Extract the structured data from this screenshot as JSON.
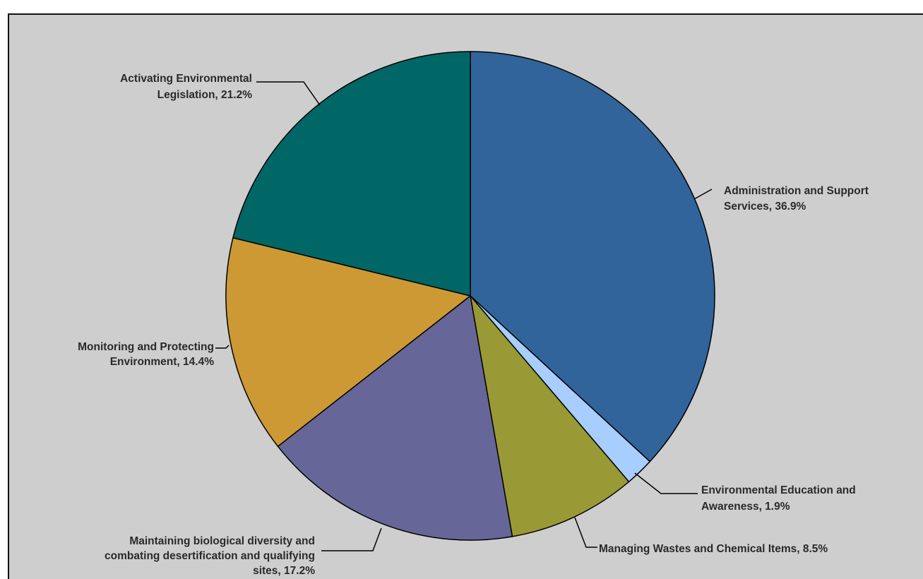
{
  "chart_data": {
    "type": "pie",
    "title": "",
    "slices": [
      {
        "label": "Administration and Support Services",
        "value": 36.9,
        "display": "36.9%",
        "color": "#31649a"
      },
      {
        "label": "Environmental Education and Awareness",
        "value": 1.9,
        "display": "1.9%",
        "color": "#a7ceff"
      },
      {
        "label": "Managing Wastes and Chemical Items",
        "value": 8.5,
        "display": "8.5%",
        "color": "#999a35"
      },
      {
        "label": "Maintaining biological diversity and combating desertification and qualifying sites",
        "value": 17.2,
        "display": "17.2%",
        "color": "#666698"
      },
      {
        "label": "Monitoring and Protecting Environment",
        "value": 14.4,
        "display": "14.4%",
        "color": "#cc9935"
      },
      {
        "label": "Activating Environmental Legislation",
        "value": 21.2,
        "display": "21.2%",
        "color": "#016666"
      }
    ],
    "label_texts": [
      [
        "Administration and Support",
        "Services, 36.9%"
      ],
      [
        "Environmental Education and",
        "Awareness, 1.9%"
      ],
      [
        "Managing Wastes and Chemical Items, 8.5%"
      ],
      [
        "Maintaining biological diversity and",
        "combating desertification and qualifying",
        "sites, 17.2%"
      ],
      [
        "Monitoring and Protecting",
        "Environment, 14.4%"
      ],
      [
        "Activating Environmental",
        "Legislation, 21.2%"
      ]
    ],
    "start_angle": "12 o'clock",
    "direction": "clockwise",
    "background_color": "#cecece",
    "slice_border_color": "#000000",
    "legend": "none"
  }
}
